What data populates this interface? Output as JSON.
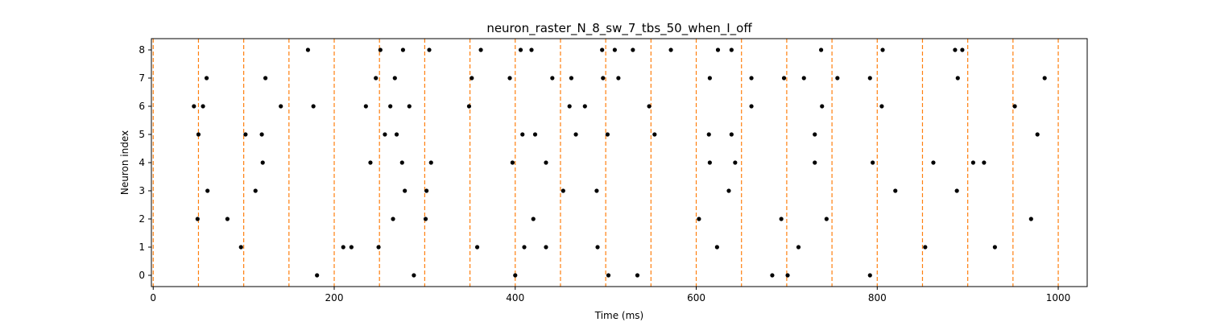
{
  "chart_data": {
    "type": "scatter",
    "title": "neuron_raster_N_8_sw_7_tbs_50_when_I_off",
    "xlabel": "Time (ms)",
    "ylabel": "Neuron index",
    "xlim": [
      -2,
      1032
    ],
    "ylim": [
      -0.4,
      8.4
    ],
    "xticks": [
      0,
      200,
      400,
      600,
      800,
      1000
    ],
    "yticks": [
      0,
      1,
      2,
      3,
      4,
      5,
      6,
      7,
      8
    ],
    "grid": false,
    "marker_color": "#000000",
    "vline_color": "#ff7f0e",
    "vlines": [
      0,
      50,
      100,
      150,
      200,
      250,
      300,
      350,
      400,
      450,
      500,
      550,
      600,
      650,
      700,
      750,
      800,
      850,
      900,
      950,
      1000
    ],
    "spikes": [
      {
        "neuron": 8,
        "times": [
          171,
          251,
          276,
          305,
          362,
          406,
          418,
          496,
          510,
          530,
          572,
          624,
          639,
          738,
          806,
          886,
          894
        ]
      },
      {
        "neuron": 7,
        "times": [
          59,
          124,
          246,
          267,
          352,
          394,
          441,
          462,
          497,
          514,
          615,
          661,
          697,
          719,
          756,
          792,
          889,
          985
        ]
      },
      {
        "neuron": 6,
        "times": [
          45,
          55,
          141,
          177,
          235,
          262,
          283,
          349,
          460,
          477,
          548,
          661,
          739,
          805,
          952
        ]
      },
      {
        "neuron": 5,
        "times": [
          50,
          102,
          120,
          256,
          269,
          408,
          422,
          467,
          502,
          554,
          614,
          639,
          731,
          977
        ]
      },
      {
        "neuron": 4,
        "times": [
          121,
          240,
          275,
          307,
          397,
          434,
          615,
          643,
          731,
          795,
          862,
          906,
          918
        ]
      },
      {
        "neuron": 3,
        "times": [
          60,
          113,
          278,
          302,
          453,
          490,
          636,
          820,
          888
        ]
      },
      {
        "neuron": 2,
        "times": [
          49,
          82,
          265,
          301,
          420,
          603,
          694,
          744,
          970
        ]
      },
      {
        "neuron": 1,
        "times": [
          97,
          210,
          219,
          249,
          358,
          410,
          434,
          491,
          623,
          713,
          853,
          930
        ]
      },
      {
        "neuron": 0,
        "times": [
          181,
          288,
          400,
          503,
          535,
          684,
          701,
          792
        ]
      }
    ]
  }
}
